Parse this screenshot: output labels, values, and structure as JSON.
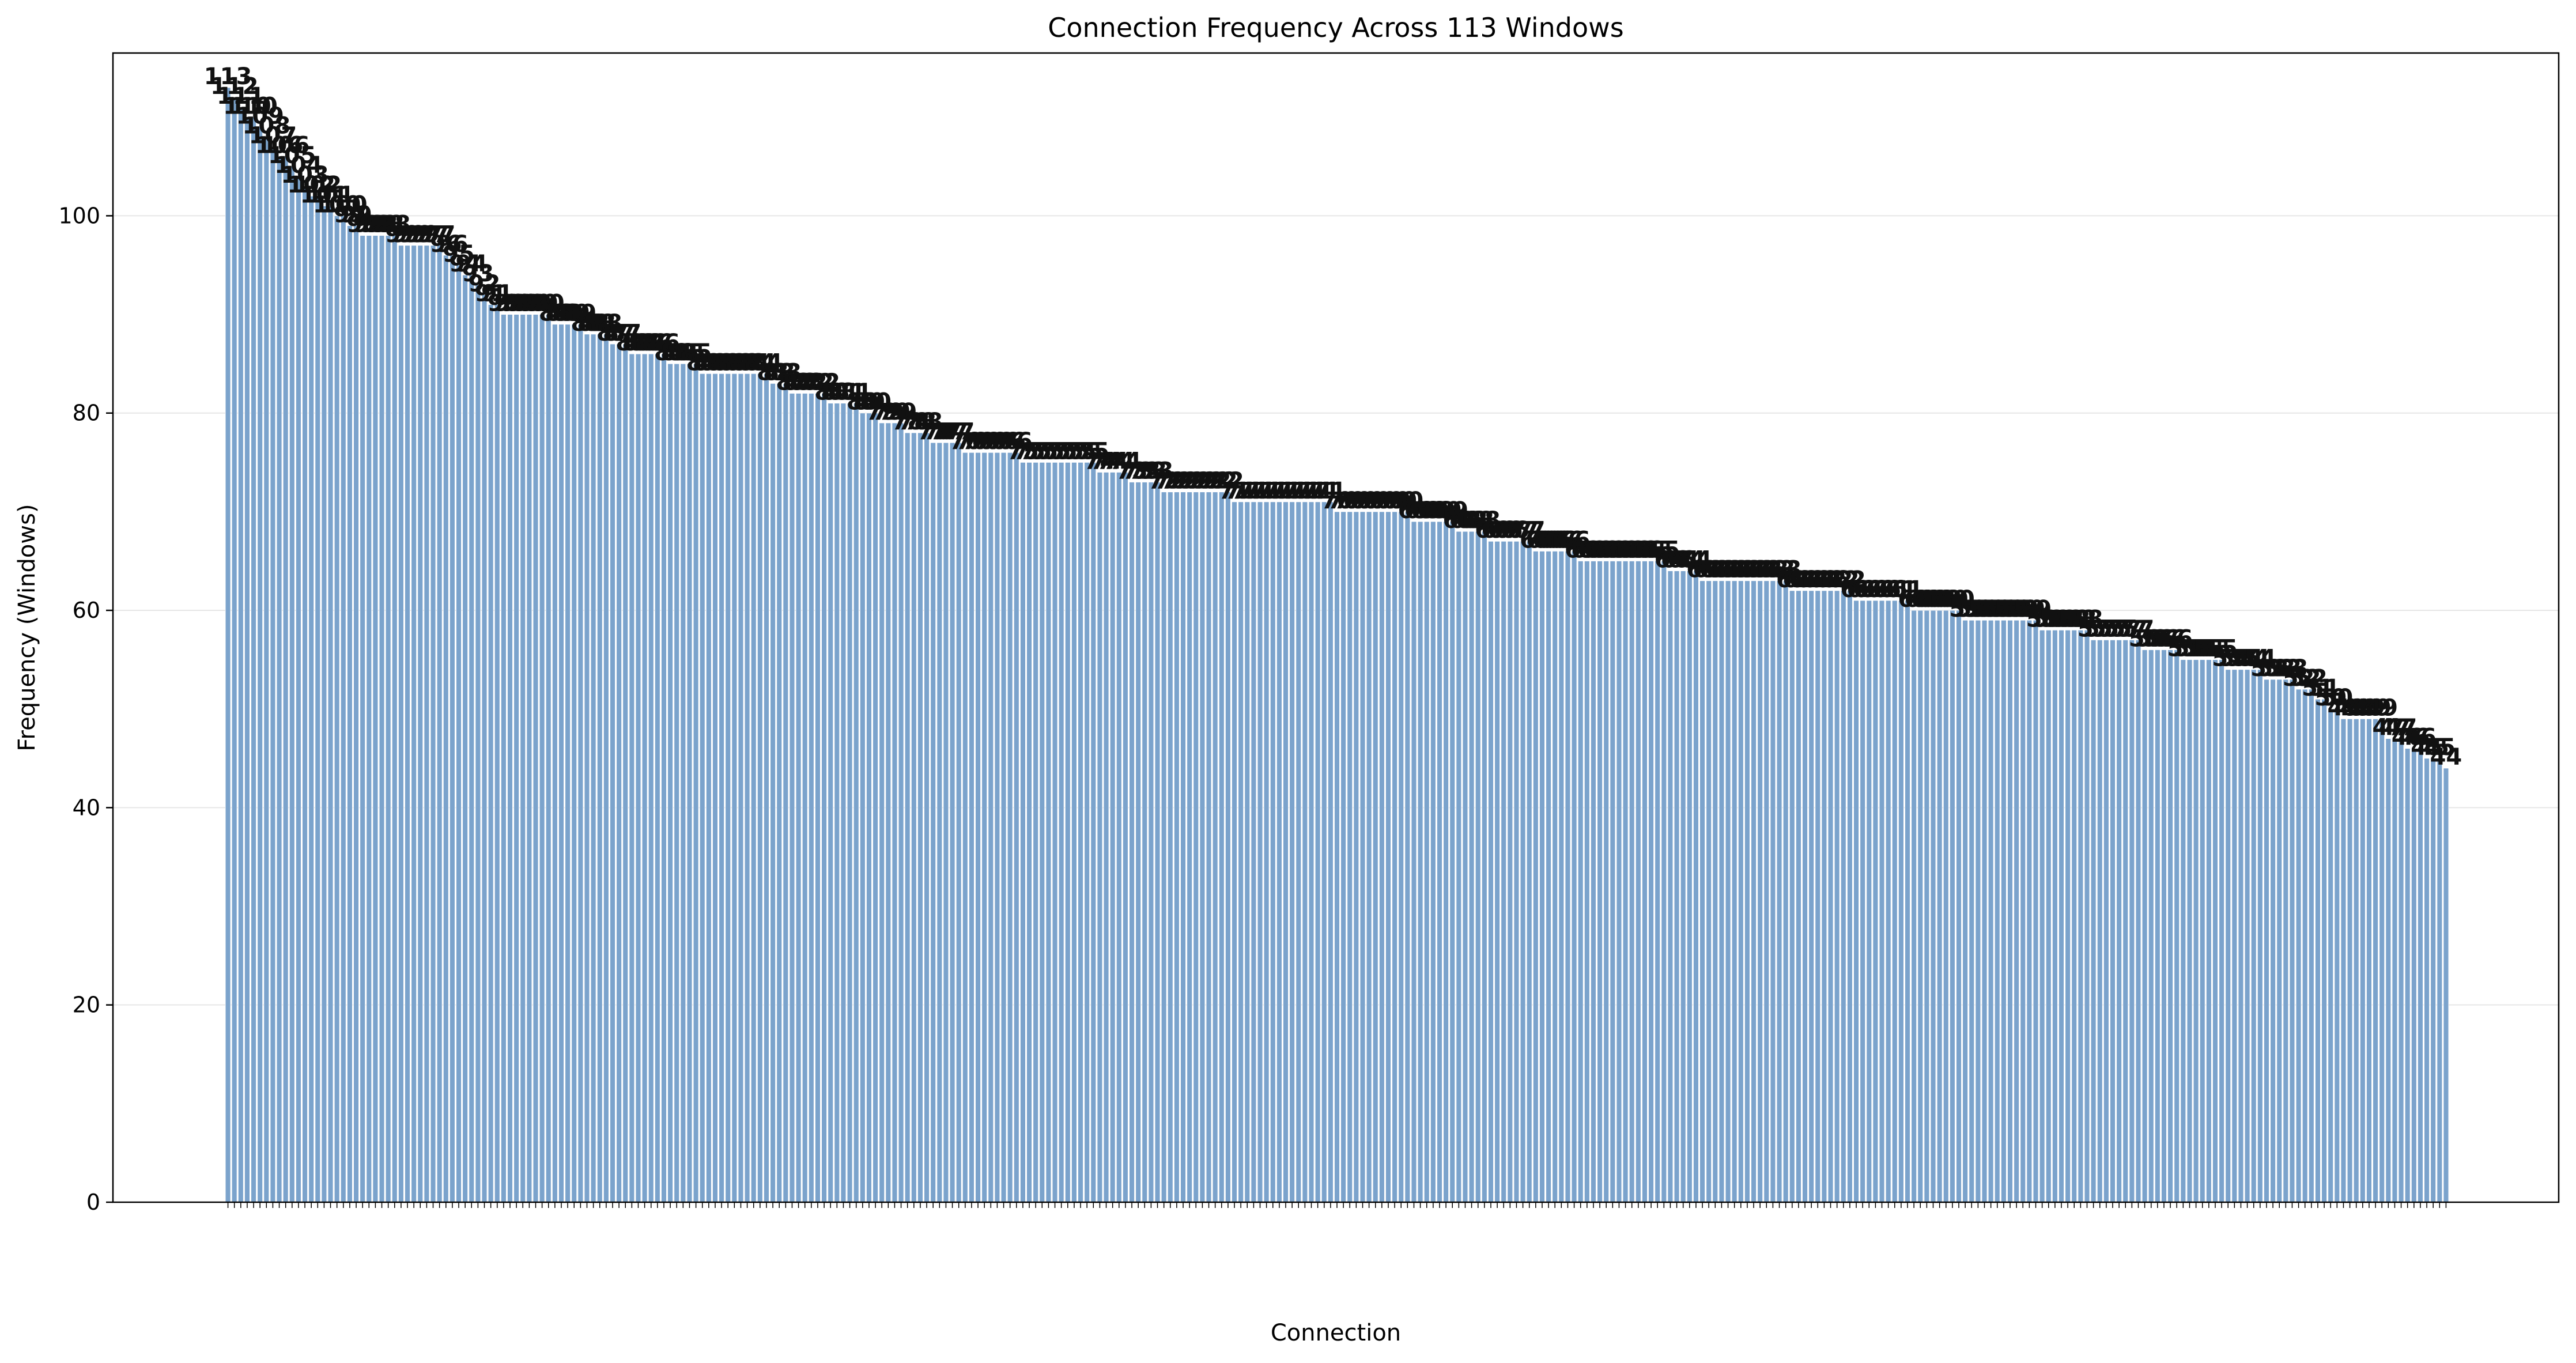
{
  "chart_data": {
    "type": "bar",
    "title": "Connection Frequency Across 113 Windows",
    "xlabel": "Connection",
    "ylabel": "Frequency (Windows)",
    "ylim": [
      0,
      116.5
    ],
    "yticks": [
      0,
      20,
      40,
      60,
      80,
      100
    ],
    "grid": "y",
    "bar_color": "#7ba3cc",
    "bar_edge_color": "#ffffff",
    "label_color": "#111111",
    "values": [
      113,
      112,
      111,
      110,
      110,
      109,
      108,
      107,
      106,
      106,
      105,
      104,
      103,
      102,
      102,
      101,
      101,
      100,
      100,
      99,
      99,
      98,
      98,
      98,
      98,
      98,
      98,
      97,
      97,
      97,
      97,
      97,
      97,
      97,
      96,
      96,
      95,
      94,
      94,
      93,
      92,
      91,
      91,
      90,
      90,
      90,
      90,
      90,
      90,
      90,
      90,
      89,
      89,
      89,
      89,
      89,
      88,
      88,
      88,
      88,
      87,
      87,
      87,
      86,
      86,
      86,
      86,
      86,
      86,
      85,
      85,
      85,
      85,
      85,
      84,
      84,
      84,
      84,
      84,
      84,
      84,
      84,
      84,
      84,
      84,
      83,
      83,
      83,
      82,
      82,
      82,
      82,
      82,
      82,
      81,
      81,
      81,
      81,
      81,
      80,
      80,
      80,
      79,
      79,
      79,
      79,
      78,
      78,
      78,
      78,
      77,
      77,
      77,
      77,
      77,
      76,
      76,
      76,
      76,
      76,
      76,
      76,
      76,
      76,
      75,
      75,
      75,
      75,
      75,
      75,
      75,
      75,
      75,
      75,
      75,
      75,
      74,
      74,
      74,
      74,
      74,
      73,
      73,
      73,
      73,
      73,
      72,
      72,
      72,
      72,
      72,
      72,
      72,
      72,
      72,
      72,
      72,
      71,
      71,
      71,
      71,
      71,
      71,
      71,
      71,
      71,
      71,
      71,
      71,
      71,
      71,
      71,
      71,
      70,
      70,
      70,
      70,
      70,
      70,
      70,
      70,
      70,
      70,
      70,
      70,
      69,
      69,
      69,
      69,
      69,
      69,
      69,
      68,
      68,
      68,
      68,
      68,
      67,
      67,
      67,
      67,
      67,
      67,
      67,
      66,
      66,
      66,
      66,
      66,
      66,
      66,
      65,
      65,
      65,
      65,
      65,
      65,
      65,
      65,
      65,
      65,
      65,
      65,
      65,
      65,
      64,
      64,
      64,
      64,
      64,
      63,
      63,
      63,
      63,
      63,
      63,
      63,
      63,
      63,
      63,
      63,
      63,
      63,
      63,
      62,
      62,
      62,
      62,
      62,
      62,
      62,
      62,
      62,
      62,
      61,
      61,
      61,
      61,
      61,
      61,
      61,
      61,
      61,
      60,
      60,
      60,
      60,
      60,
      60,
      60,
      60,
      59,
      59,
      59,
      59,
      59,
      59,
      59,
      59,
      59,
      59,
      59,
      59,
      58,
      58,
      58,
      58,
      58,
      58,
      58,
      58,
      57,
      57,
      57,
      57,
      57,
      57,
      57,
      57,
      56,
      56,
      56,
      56,
      56,
      56,
      55,
      55,
      55,
      55,
      55,
      55,
      55,
      54,
      54,
      54,
      54,
      54,
      54,
      53,
      53,
      53,
      53,
      53,
      52,
      52,
      52,
      51,
      51,
      50,
      50,
      49,
      49,
      49,
      49,
      49,
      49,
      49,
      47,
      47,
      47,
      46,
      46,
      46,
      45,
      45,
      45,
      44
    ]
  }
}
